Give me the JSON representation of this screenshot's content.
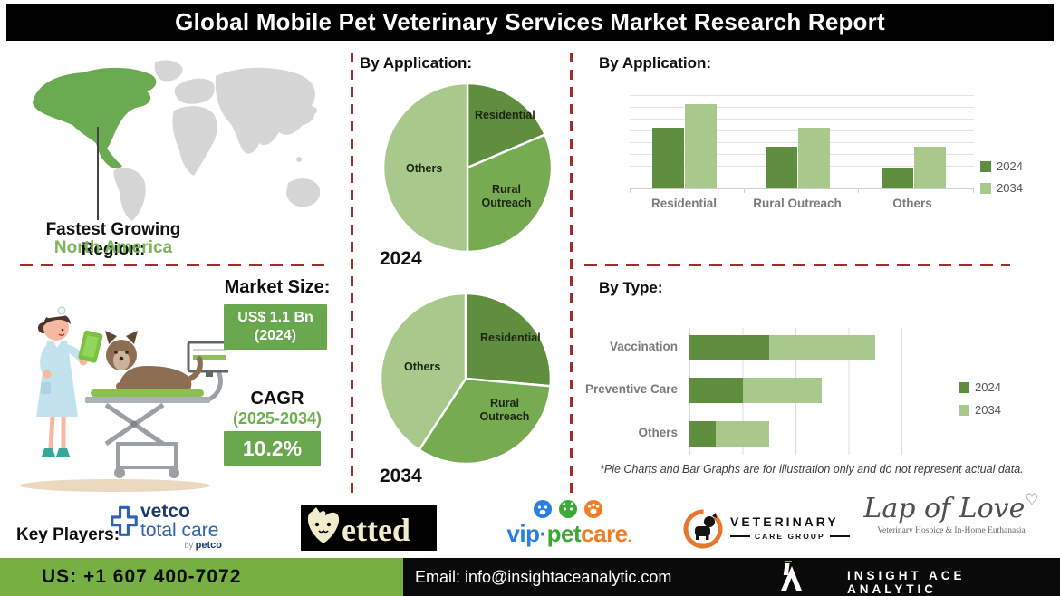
{
  "header": {
    "title": "Global Mobile Pet Veterinary Services Market Research Report"
  },
  "region": {
    "label": "Fastest Growing Region:",
    "value": "North America"
  },
  "market": {
    "size_label": "Market Size:",
    "size_value": "US$ 1.1 Bn",
    "size_year": "(2024)",
    "cagr_label": "CAGR",
    "cagr_period": "(2025-2034)",
    "cagr_value": "10.2%"
  },
  "pies": {
    "section_title": "By Application:"
  },
  "footnote": "*Pie Charts and Bar Graphs are for illustration only and do not represent actual data.",
  "colors": {
    "dark_green": "#5f8e3f",
    "mid_green": "#77ab52",
    "light_green": "#a8c88c",
    "box_green": "#69a74e",
    "footer_green": "#76b043",
    "dashed_red": "#9e2f2a",
    "region_green": "#7cb55a"
  },
  "chart_data": [
    {
      "type": "pie",
      "title": "By Application:",
      "year": "2024",
      "labels": [
        "Residential",
        "Rural Outreach",
        "Others"
      ],
      "values": [
        18.6,
        31.4,
        50.0
      ],
      "slice_colors": [
        "dark_green",
        "mid_green",
        "light_green"
      ],
      "note": "illustrative only"
    },
    {
      "type": "pie",
      "title": "By Application:",
      "year": "2034",
      "labels": [
        "Residential",
        "Rural Outreach",
        "Others"
      ],
      "values": [
        26.4,
        32.8,
        40.8
      ],
      "slice_colors": [
        "dark_green",
        "mid_green",
        "light_green"
      ],
      "note": "illustrative only"
    },
    {
      "type": "bar",
      "title": "By Application:",
      "categories": [
        "Residential",
        "Rural Outreach",
        "Others"
      ],
      "series": [
        {
          "name": "2024",
          "color": "dark_green",
          "values": [
            65,
            45,
            22
          ]
        },
        {
          "name": "2034",
          "color": "light_green",
          "values": [
            90,
            65,
            45
          ]
        }
      ],
      "ylim": [
        0,
        100
      ],
      "grid": true,
      "legend_position": "right",
      "note": "illustrative only"
    },
    {
      "type": "bar-horizontal-stacked",
      "title": "By Type:",
      "categories": [
        "Vaccination",
        "Preventive Care",
        "Others"
      ],
      "series": [
        {
          "name": "2024",
          "color": "dark_green",
          "values": [
            15,
            10,
            5
          ]
        },
        {
          "name": "2034",
          "color": "light_green",
          "values": [
            20,
            15,
            10
          ]
        }
      ],
      "xlim": [
        0,
        40
      ],
      "grid": true,
      "legend_position": "right",
      "note": "illustrative only"
    }
  ],
  "key_players_label": "Key Players:",
  "key_players": [
    {
      "name": "Vetco Total Care",
      "line1": "vetco",
      "line2": "total care",
      "by": "by",
      "brand": "petco"
    },
    {
      "name": "Vetted",
      "text_rest": "etted"
    },
    {
      "name": "VIP Petcare",
      "part1": "vip",
      "dot": "·",
      "part2": "pet",
      "part3": "care",
      "period": "."
    },
    {
      "name": "Veterinary Care Group",
      "line1": "VETERINARY",
      "line2": "CARE GROUP"
    },
    {
      "name": "Lap of Love",
      "script": "Lap of Love",
      "heart": "♡",
      "tagline": "Veterinary Hospice & In-Home Euthanasia"
    }
  ],
  "contact": {
    "phone": "US: +1 607 400-7072",
    "email": "Email: info@insightaceanalytic.com",
    "brand": "INSIGHT ACE ANALYTIC"
  }
}
